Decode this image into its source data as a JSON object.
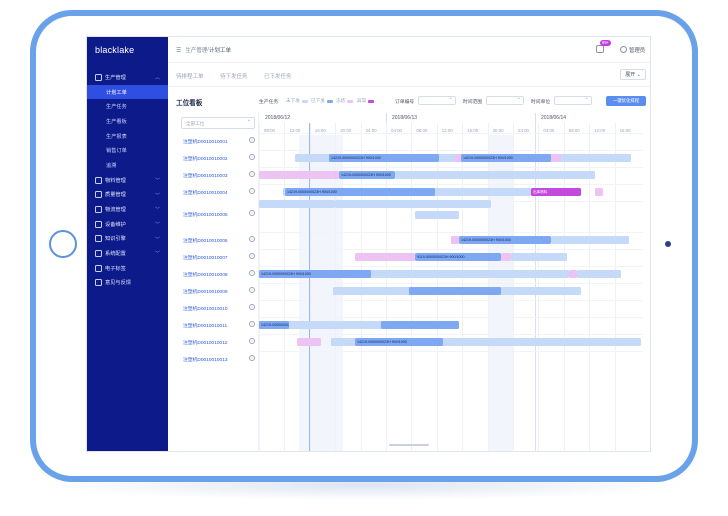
{
  "app": {
    "brand": "blacklake"
  },
  "sidebar": {
    "items": [
      {
        "label": "生产管理",
        "type": "group",
        "icon": "factory-icon",
        "expanded": true
      },
      {
        "label": "计划工单",
        "type": "sub",
        "active": true
      },
      {
        "label": "生产任务",
        "type": "sub"
      },
      {
        "label": "生产看板",
        "type": "sub"
      },
      {
        "label": "生产报表",
        "type": "sub"
      },
      {
        "label": "销售订单",
        "type": "sub"
      },
      {
        "label": "追溯",
        "type": "sub"
      },
      {
        "label": "物料管理",
        "type": "group",
        "icon": "box-icon"
      },
      {
        "label": "质量管理",
        "type": "group",
        "icon": "shield-icon"
      },
      {
        "label": "物流管理",
        "type": "group",
        "icon": "truck-icon"
      },
      {
        "label": "设备维护",
        "type": "group",
        "icon": "wrench-icon"
      },
      {
        "label": "知识引擎",
        "type": "group",
        "icon": "book-icon"
      },
      {
        "label": "系统配置",
        "type": "group",
        "icon": "gear-icon"
      },
      {
        "label": "电子标签",
        "type": "group",
        "icon": "tag-icon"
      },
      {
        "label": "意见与反馈",
        "type": "group",
        "icon": "mail-icon"
      }
    ]
  },
  "header": {
    "breadcrumb_parent": "生产管理",
    "breadcrumb_sep": " / ",
    "breadcrumb_current": "计划工单",
    "badge": "99+",
    "user": "管理员"
  },
  "tabs": [
    {
      "label": "待排程工单"
    },
    {
      "label": "待下发任务"
    },
    {
      "label": "已下发任务"
    }
  ],
  "expand_label": "展开",
  "toolbar": {
    "title": "工位看板",
    "task_label": "生产任务:",
    "legend": [
      {
        "label": "未下发",
        "color": "#c5d9f8"
      },
      {
        "label": "已下发",
        "color": "#7ea9f2"
      },
      {
        "label": "冻结",
        "color": "#ecc3f3"
      },
      {
        "label": "异常",
        "color": "#c44ade"
      }
    ],
    "order_label": "订单编号",
    "time_label": "时间范围",
    "station_label": "时间单位",
    "button": "一键优化排程"
  },
  "gantt": {
    "search_placeholder": "全部工位",
    "info_glyph": "i",
    "days": [
      "2018/06/12",
      "2018/06/13",
      "2018/06/14"
    ],
    "hours": [
      "08:00",
      "12:00",
      "16:00",
      "20:00",
      "24:00",
      "04:00",
      "08:00",
      "12:00",
      "16:00",
      "20:00",
      "24:00",
      "04:00",
      "08:00",
      "12:00",
      "16:00"
    ],
    "rows": [
      {
        "label": "注塑机D0010010001"
      },
      {
        "label": "注塑机D0010010002"
      },
      {
        "label": "注塑机D0010010003"
      },
      {
        "label": "注塑机D0010010004"
      },
      {
        "label": "注塑机D0010010005"
      },
      {
        "label": "注塑机D0010010006"
      },
      {
        "label": "注塑机D0010010007"
      },
      {
        "label": "注塑机D0010010008"
      },
      {
        "label": "注塑机D0010010009"
      },
      {
        "label": "注塑机D0010010010"
      },
      {
        "label": "注塑机D0010010011"
      },
      {
        "label": "注塑机D0010010012"
      },
      {
        "label": "注塑机D0010010013"
      }
    ],
    "bar_texts": [
      "14219-0000000023H  900/1000",
      "14219-0000000023H  900/1000",
      "14219-0000000023H  900/1000",
      "14219-0000000023H  900/1000",
      "出库物料",
      "出库物料",
      "14219-0000000023H  900/1000",
      "9119-0000000023H  900/1000",
      "14219-0000000023H  900/1000",
      "14219-0000000023H  900/1000",
      "14219-0000000023H  900/1000"
    ]
  }
}
